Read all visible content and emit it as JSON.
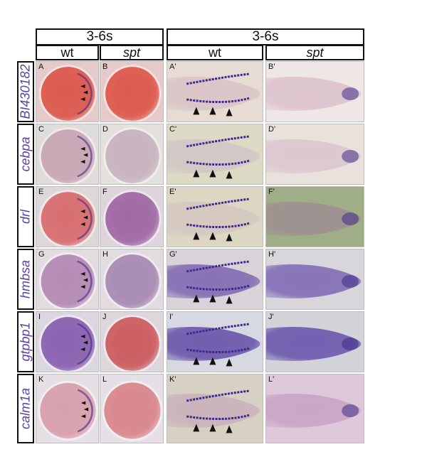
{
  "headers": {
    "left_group": "3-6s",
    "right_group": "3-6s",
    "columns": [
      "wt",
      "spt",
      "wt",
      "spt"
    ]
  },
  "genes": [
    "BI430182",
    "cebpa",
    "drl",
    "hmbsa",
    "gtpbp1",
    "calm1a"
  ],
  "panels": [
    {
      "label": "A",
      "gene": "BI430182",
      "genotype": "wt",
      "view": "lateral",
      "expression": "present",
      "bg": "#e6c9c9",
      "embryo": "#dc5a4e"
    },
    {
      "label": "B",
      "gene": "BI430182",
      "genotype": "spt",
      "view": "lateral",
      "expression": "absent",
      "bg": "#e6c9c9",
      "embryo": "#de5b4f"
    },
    {
      "label": "A'",
      "gene": "BI430182",
      "genotype": "wt",
      "view": "dorsal-flat",
      "expression": "present",
      "bg": "#e7dcd4",
      "embryo": "#d9c3c6"
    },
    {
      "label": "B'",
      "gene": "BI430182",
      "genotype": "spt",
      "view": "dorsal-flat",
      "expression": "absent",
      "bg": "#efe6e6",
      "embryo": "#dcc1cc"
    },
    {
      "label": "C",
      "gene": "cebpa",
      "genotype": "wt",
      "view": "lateral",
      "expression": "present",
      "bg": "#dfdcd9",
      "embryo": "#c9a7b5"
    },
    {
      "label": "D",
      "gene": "cebpa",
      "genotype": "spt",
      "view": "lateral",
      "expression": "absent",
      "bg": "#e3e0de",
      "embryo": "#c7b4bf"
    },
    {
      "label": "C'",
      "gene": "cebpa",
      "genotype": "wt",
      "view": "dorsal-flat",
      "expression": "present",
      "bg": "#dcd9c4",
      "embryo": "#d1c6c6"
    },
    {
      "label": "D'",
      "gene": "cebpa",
      "genotype": "spt",
      "view": "dorsal-flat",
      "expression": "absent",
      "bg": "#e8e1dc",
      "embryo": "#dac6ce"
    },
    {
      "label": "E",
      "gene": "drl",
      "genotype": "wt",
      "view": "lateral",
      "expression": "present",
      "bg": "#ded7d8",
      "embryo": "#d86e70"
    },
    {
      "label": "F",
      "gene": "drl",
      "genotype": "spt",
      "view": "lateral",
      "expression": "absent",
      "bg": "#ddd4dc",
      "embryo": "#a26aa5"
    },
    {
      "label": "E'",
      "gene": "drl",
      "genotype": "wt",
      "view": "dorsal-flat",
      "expression": "present",
      "bg": "#ddd6c2",
      "embryo": "#d5c8c0"
    },
    {
      "label": "F'",
      "gene": "drl",
      "genotype": "spt",
      "view": "dorsal-flat",
      "expression": "absent",
      "bg": "#9fae87",
      "embryo": "#9f8f92"
    },
    {
      "label": "G",
      "gene": "hmbsa",
      "genotype": "wt",
      "view": "lateral",
      "expression": "present",
      "bg": "#e2dbe0",
      "embryo": "#b58bb4"
    },
    {
      "label": "H",
      "gene": "hmbsa",
      "genotype": "spt",
      "view": "lateral",
      "expression": "absent",
      "bg": "#e2dbe0",
      "embryo": "#a98cb4"
    },
    {
      "label": "G'",
      "gene": "hmbsa",
      "genotype": "wt",
      "view": "dorsal-flat",
      "expression": "present",
      "bg": "#d8d3d8",
      "embryo": "#7e67b0"
    },
    {
      "label": "H'",
      "gene": "hmbsa",
      "genotype": "spt",
      "view": "dorsal-flat",
      "expression": "absent",
      "bg": "#d9d6db",
      "embryo": "#7d69b4"
    },
    {
      "label": "I",
      "gene": "gtpbp1",
      "genotype": "wt",
      "view": "lateral",
      "expression": "present",
      "bg": "#dcd6e0",
      "embryo": "#8a63b1"
    },
    {
      "label": "J",
      "gene": "gtpbp1",
      "genotype": "spt",
      "view": "lateral",
      "expression": "absent",
      "bg": "#ddd6dc",
      "embryo": "#cc5f62"
    },
    {
      "label": "I'",
      "gene": "gtpbp1",
      "genotype": "wt",
      "view": "dorsal-flat",
      "expression": "present",
      "bg": "#d6d8e2",
      "embryo": "#6550a8"
    },
    {
      "label": "J'",
      "gene": "gtpbp1",
      "genotype": "spt",
      "view": "dorsal-flat",
      "expression": "absent",
      "bg": "#d3d3da",
      "embryo": "#6753ac"
    },
    {
      "label": "K",
      "gene": "calm1a",
      "genotype": "wt",
      "view": "lateral",
      "expression": "present",
      "bg": "#e6e0e6",
      "embryo": "#d8a0ad"
    },
    {
      "label": "L",
      "gene": "calm1a",
      "genotype": "spt",
      "view": "lateral",
      "expression": "absent",
      "bg": "#e6e0e6",
      "embryo": "#d8888e"
    },
    {
      "label": "K'",
      "gene": "calm1a",
      "genotype": "wt",
      "view": "dorsal-flat",
      "expression": "present",
      "bg": "#d7d1c4",
      "embryo": "#c8b1bb"
    },
    {
      "label": "L'",
      "gene": "calm1a",
      "genotype": "spt",
      "view": "dorsal-flat",
      "expression": "absent",
      "bg": "#ddc9d9",
      "embryo": "#c7a3c5"
    }
  ]
}
